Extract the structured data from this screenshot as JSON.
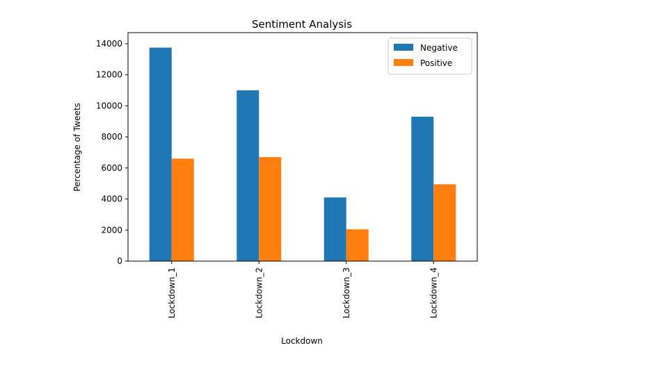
{
  "chart_data": {
    "type": "bar",
    "title": "Sentiment Analysis",
    "xlabel": "Lockdown",
    "ylabel": "Percentage of Tweets",
    "categories": [
      "Lockdown_1",
      "Lockdown_2",
      "Lockdown_3",
      "Lockdown_4"
    ],
    "series": [
      {
        "name": "Negative",
        "color": "#1f77b4",
        "values": [
          13750,
          11000,
          4100,
          9300
        ]
      },
      {
        "name": "Positive",
        "color": "#ff7f0e",
        "values": [
          6600,
          6700,
          2050,
          4950
        ]
      }
    ],
    "ylim": [
      0,
      14000
    ],
    "yticks": [
      0,
      2000,
      4000,
      6000,
      8000,
      10000,
      12000,
      14000
    ],
    "grid": false,
    "legend_position": "top-right"
  }
}
